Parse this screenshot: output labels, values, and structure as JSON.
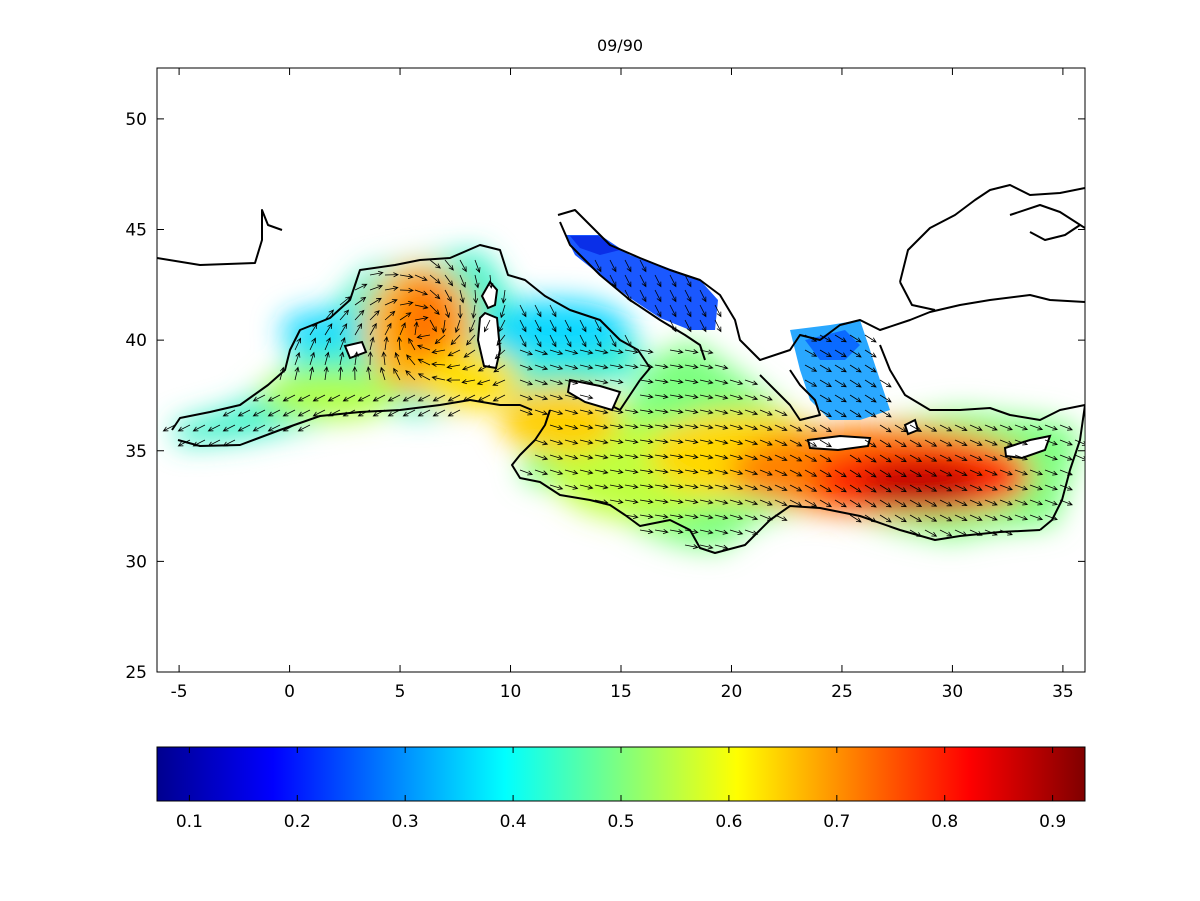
{
  "title": "09/90",
  "map": {
    "x_ticks": [
      "-5",
      "0",
      "5",
      "10",
      "15",
      "20",
      "25",
      "30",
      "35"
    ],
    "y_ticks": [
      "50",
      "45",
      "40",
      "35",
      "30",
      "25"
    ],
    "x_range": [
      -6,
      36
    ],
    "y_range": [
      25,
      52.3
    ]
  },
  "colorbar": {
    "colormap": "jet",
    "range": [
      0.07,
      0.93
    ],
    "ticks": [
      "0.1",
      "0.2",
      "0.3",
      "0.4",
      "0.5",
      "0.6",
      "0.7",
      "0.8",
      "0.9"
    ]
  }
}
